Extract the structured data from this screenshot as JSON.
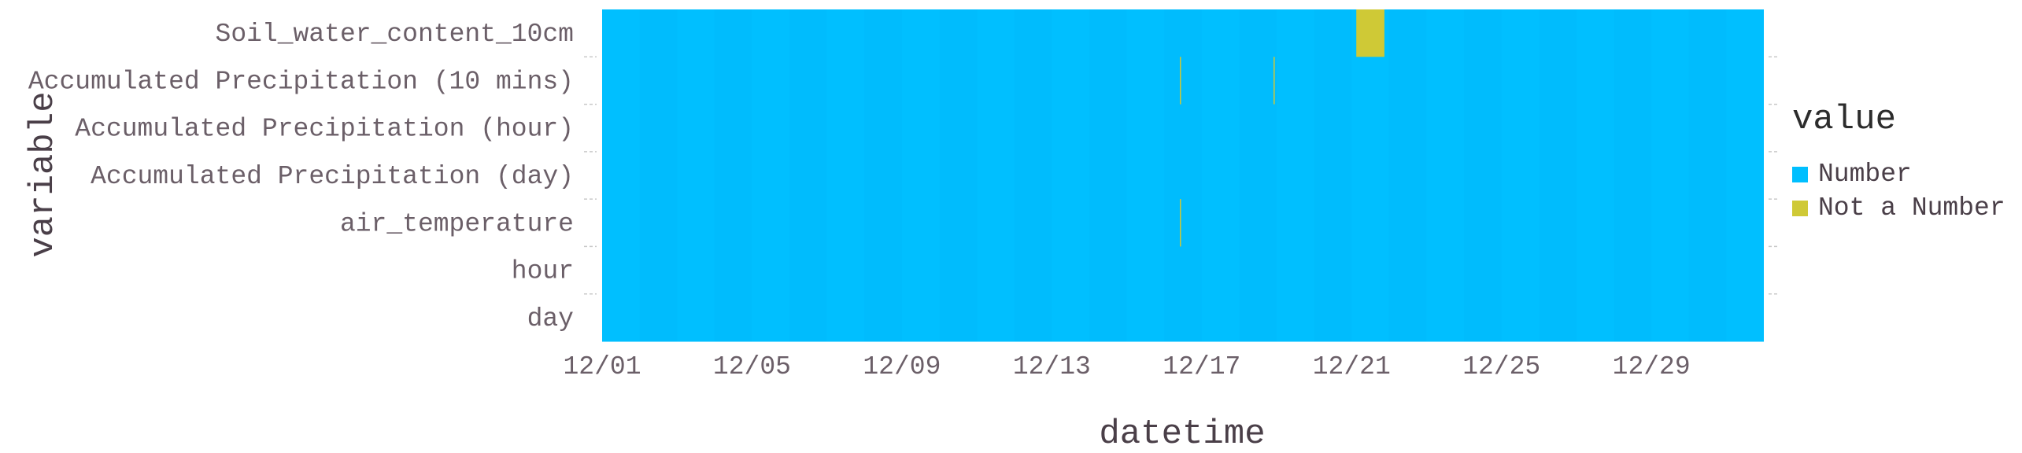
{
  "chart_data": {
    "type": "heatmap",
    "title": "",
    "xlabel": "datetime",
    "ylabel": "variable",
    "x_range": [
      "12/01",
      "12/31"
    ],
    "x_ticks": [
      "12/01",
      "12/05",
      "12/09",
      "12/13",
      "12/17",
      "12/21",
      "12/25",
      "12/29"
    ],
    "variables": [
      "Soil_water_content_10cm",
      "Accumulated Precipitation (10 mins)",
      "Accumulated Precipitation (hour)",
      "Accumulated Precipitation (day)",
      "air_temperature",
      "hour",
      "day"
    ],
    "legend": {
      "title": "value",
      "position": "right",
      "items": [
        {
          "label": "Number",
          "color": "#00bfff"
        },
        {
          "label": "Not a Number",
          "color": "#cfc936"
        }
      ]
    },
    "default_value": "Number",
    "nan_segments": [
      {
        "variable": "Soil_water_content_10cm",
        "start": "12/21 03:00",
        "end": "12/21 21:00"
      },
      {
        "variable": "Accumulated Precipitation (10 mins)",
        "start": "12/16 10:00",
        "end": "12/16 10:20"
      },
      {
        "variable": "Accumulated Precipitation (10 mins)",
        "start": "12/18 22:00",
        "end": "12/18 22:20"
      },
      {
        "variable": "air_temperature",
        "start": "12/16 10:00",
        "end": "12/16 10:20"
      }
    ],
    "grid": false
  }
}
